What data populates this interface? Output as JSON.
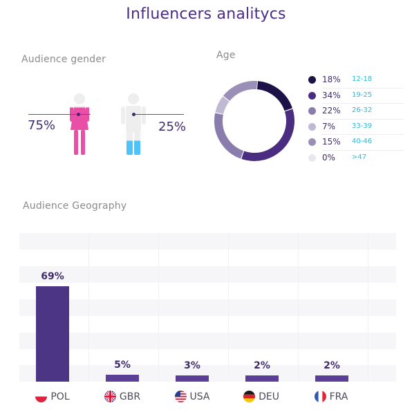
{
  "title": "Influencers analitycs",
  "gender": {
    "label": "Audience gender",
    "female_pct": "75%",
    "male_pct": "25%",
    "female_fraction": 0.75,
    "male_fraction": 0.25,
    "colors": {
      "female": "#e94fa6",
      "male_legs": "#4fc3f7",
      "silhouette": "#eeeeee"
    }
  },
  "age": {
    "label": "Age",
    "legend": [
      {
        "pct": "18%",
        "range": "12-18",
        "color": "#1d1247"
      },
      {
        "pct": "34%",
        "range": "19-25",
        "color": "#4a2d80"
      },
      {
        "pct": "22%",
        "range": "26-32",
        "color": "#8a7cad"
      },
      {
        "pct": "7%",
        "range": "33-39",
        "color": "#c1b8d3"
      },
      {
        "pct": "15%",
        "range": "40-46",
        "color": "#9a8fb7"
      },
      {
        "pct": "0%",
        "range": ">47",
        "color": "#e8e8ee"
      }
    ]
  },
  "geography": {
    "label": "Audience Geography",
    "countries": [
      {
        "code": "POL",
        "pct": "69%",
        "flag": "poland-flag-icon"
      },
      {
        "code": "GBR",
        "pct": "5%",
        "flag": "uk-flag-icon"
      },
      {
        "code": "USA",
        "pct": "3%",
        "flag": "usa-flag-icon"
      },
      {
        "code": "DEU",
        "pct": "2%",
        "flag": "germany-flag-icon"
      },
      {
        "code": "FRA",
        "pct": "2%",
        "flag": "france-flag-icon"
      }
    ]
  },
  "chart_data": [
    {
      "type": "pie",
      "title": "Age",
      "categories": [
        "12-18",
        "19-25",
        "26-32",
        "33-39",
        "40-46",
        ">47"
      ],
      "values": [
        18,
        34,
        22,
        7,
        15,
        0
      ],
      "colors": [
        "#1d1247",
        "#4a2d80",
        "#8a7cad",
        "#c1b8d3",
        "#9a8fb7",
        "#e8e8ee"
      ],
      "legend": "right"
    },
    {
      "type": "bar",
      "title": "Audience Geography",
      "categories": [
        "POL",
        "GBR",
        "USA",
        "DEU",
        "FRA"
      ],
      "values": [
        69,
        5,
        3,
        2,
        2
      ],
      "ylim": [
        0,
        100
      ],
      "grid": true
    },
    {
      "type": "pie",
      "title": "Audience gender",
      "categories": [
        "Female",
        "Male"
      ],
      "values": [
        75,
        25
      ]
    }
  ]
}
